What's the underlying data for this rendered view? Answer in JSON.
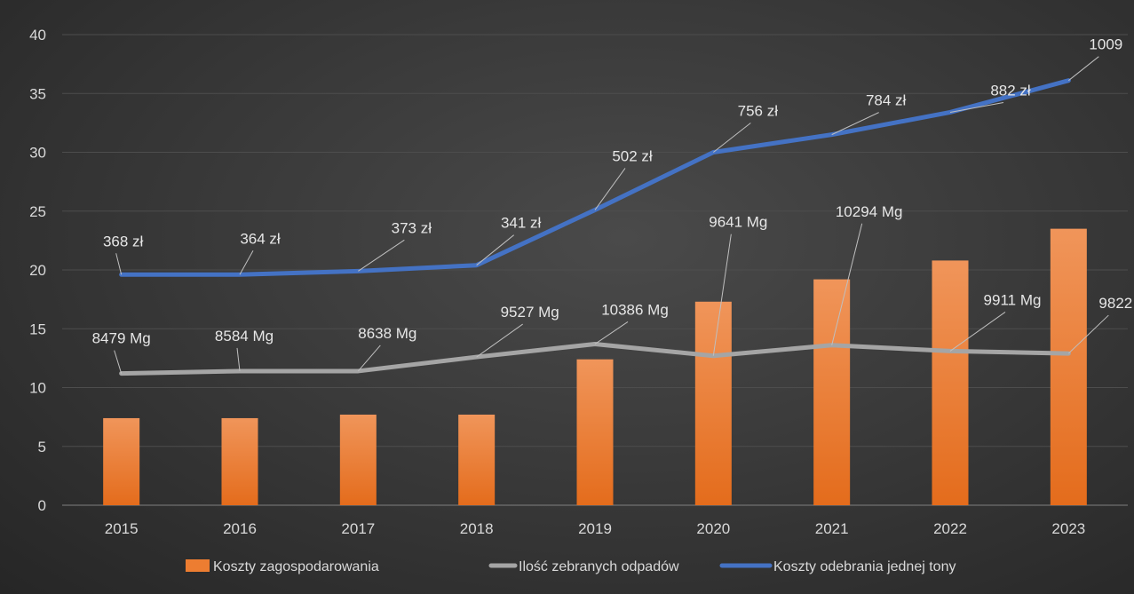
{
  "chart_data": {
    "type": "bar",
    "categories": [
      "2015",
      "2016",
      "2017",
      "2018",
      "2019",
      "2020",
      "2021",
      "2022",
      "2023"
    ],
    "ylim": [
      0,
      40
    ],
    "yticks": [
      0,
      5,
      10,
      15,
      20,
      25,
      30,
      35,
      40
    ],
    "grid": true,
    "legend_position": "bottom",
    "series": [
      {
        "name": "Koszty zagospodarowania",
        "type": "bar",
        "color": "#ed7d31",
        "values": [
          7.4,
          7.4,
          7.7,
          7.7,
          12.4,
          17.3,
          19.2,
          20.8,
          23.5
        ]
      },
      {
        "name": "Ilość zebranych odpadów",
        "type": "line",
        "color": "#a5a5a5",
        "values": [
          11.2,
          11.4,
          11.4,
          12.6,
          13.7,
          12.7,
          13.6,
          13.1,
          12.9
        ],
        "labels": [
          "8479 Mg",
          "8584 Mg",
          "8638 Mg",
          "9527 Mg",
          "10386 Mg",
          "9641 Mg",
          "10294 Mg",
          "9911 Mg",
          "9822"
        ]
      },
      {
        "name": "Koszty odebrania jednej tony",
        "type": "line",
        "color": "#4472c4",
        "values": [
          19.6,
          19.6,
          19.9,
          20.4,
          25.1,
          30.0,
          31.5,
          33.4,
          36.1
        ],
        "labels": [
          "368 zł",
          "364 zł",
          "373 zł",
          "341 zł",
          "502 zł",
          "756 zł",
          "784 zł",
          "882 zł",
          "1009"
        ]
      }
    ]
  }
}
